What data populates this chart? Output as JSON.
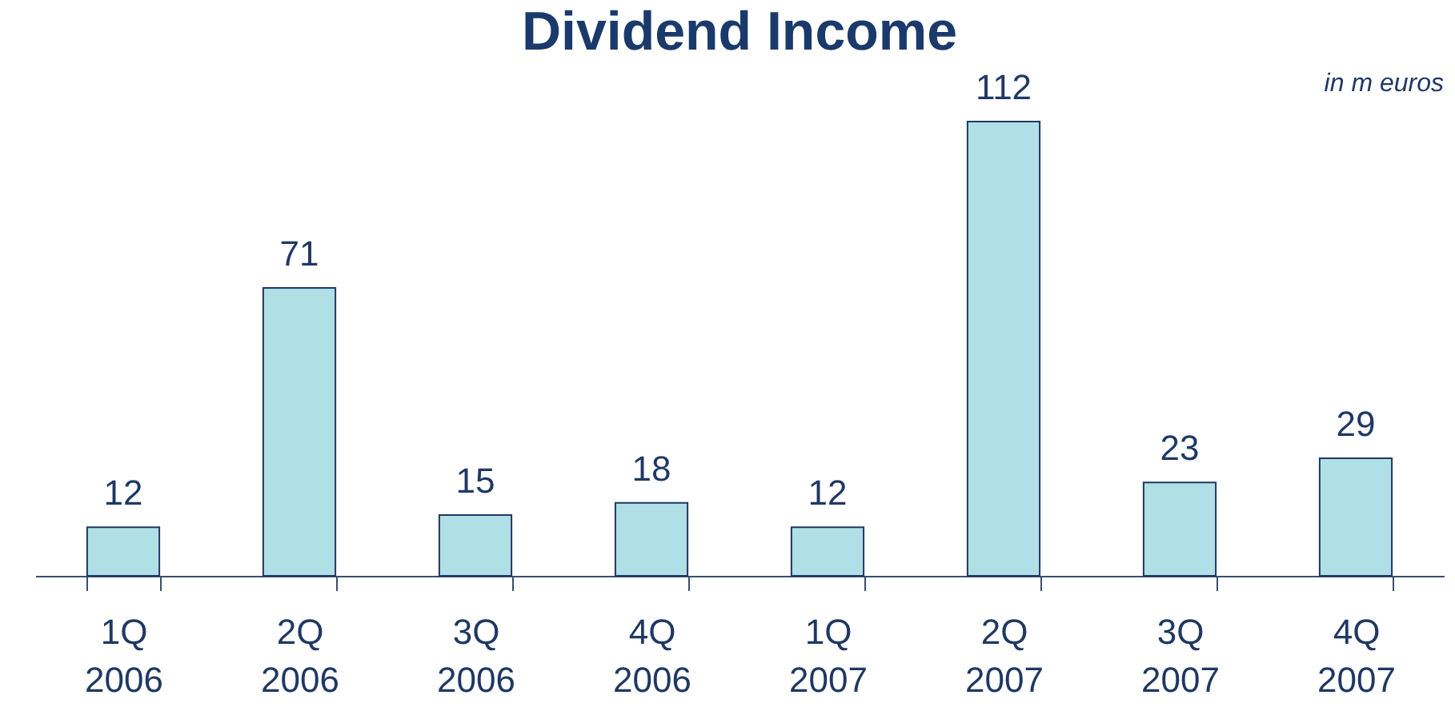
{
  "chart_data": {
    "type": "bar",
    "title": "Dividend Income",
    "annotations": [
      "in m euros"
    ],
    "categories": [
      "1Q 2006",
      "2Q 2006",
      "3Q 2006",
      "4Q 2006",
      "1Q 2007",
      "2Q 2007",
      "3Q 2007",
      "4Q 2007"
    ],
    "values": [
      12,
      71,
      15,
      18,
      12,
      112,
      23,
      29
    ],
    "color": "#b0dfe5",
    "data_labels": true,
    "tick_labels": "x"
  }
}
